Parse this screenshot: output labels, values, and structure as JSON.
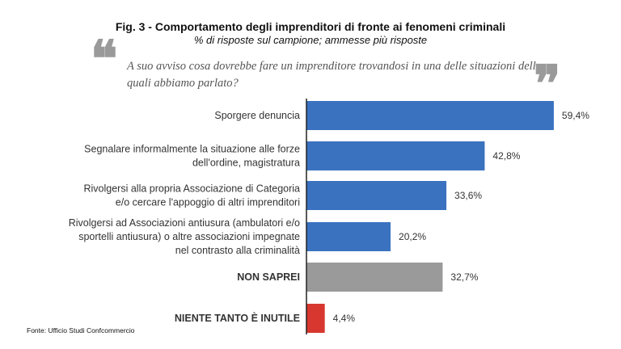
{
  "header": {
    "title": "Fig. 3 - Comportamento degli imprenditori di fronte ai fenomeni criminali",
    "subtitle": "% di risposte sul campione; ammesse più risposte"
  },
  "question": {
    "text": "A suo avviso cosa dovrebbe fare un imprenditore trovandosi in una delle situazioni delle quali abbiamo parlato?",
    "open_mark": "❝",
    "close_mark": "❞"
  },
  "footer": {
    "source": "Fonte: Ufficio Studi Confcommercio"
  },
  "colors": {
    "blue": "#3a72c0",
    "gray": "#9a9a9a",
    "red": "#d7372f",
    "axis": "#222222"
  },
  "chart_data": {
    "type": "bar",
    "orientation": "horizontal",
    "title": "Fig. 3 - Comportamento degli imprenditori di fronte ai fenomeni criminali",
    "subtitle": "% di risposte sul campione; ammesse più risposte",
    "categories": [
      [
        "Sporgere denuncia"
      ],
      [
        "Segnalare informalmente la situazione alle forze",
        "dell'ordine, magistratura"
      ],
      [
        "Rivolgersi alla propria Associazione di Categoria",
        "e/o cercare l'appoggio di altri imprenditori"
      ],
      [
        "Rivolgersi ad Associazioni antiusura (ambulatori e/o",
        "sportelli antiusura) o altre associazioni impegnate",
        "nel contrasto alla criminalità"
      ],
      [
        "NON SAPREI"
      ],
      [
        "NIENTE TANTO È INUTILE"
      ]
    ],
    "values": [
      59.4,
      42.8,
      33.6,
      20.2,
      32.7,
      4.4
    ],
    "value_labels": [
      "59,4%",
      "42,8%",
      "33,6%",
      "20,2%",
      "32,7%",
      "4,4%"
    ],
    "bar_colors": [
      "blue",
      "blue",
      "blue",
      "blue",
      "gray",
      "red"
    ],
    "caps_labels": [
      false,
      false,
      false,
      false,
      true,
      true
    ],
    "xlim": [
      0,
      100
    ],
    "grid": false,
    "legend": "none"
  }
}
